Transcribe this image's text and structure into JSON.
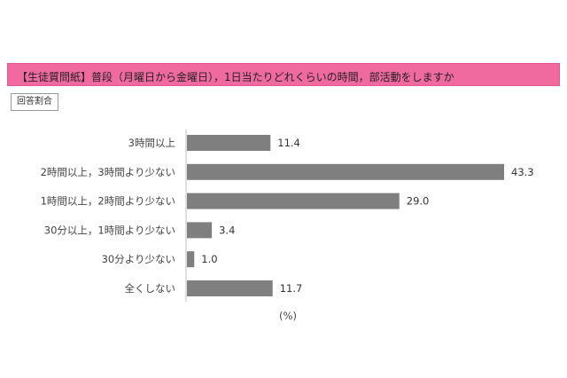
{
  "header": {
    "title": "【生徒質問紙】普段（月曜日から金曜日），1日当たりどれくらいの時間，部活動をしますか",
    "answer_label": "回答割合"
  },
  "colors": {
    "title_bg": "#f06aa0",
    "bar": "#7f7f7f",
    "axis": "#bfbfbf"
  },
  "chart_data": {
    "type": "bar",
    "orientation": "horizontal",
    "categories": [
      "3時間以上",
      "2時間以上，3時間より少ない",
      "1時間以上，2時間より少ない",
      "30分以上，1時間より少ない",
      "30分より少ない",
      "全くしない"
    ],
    "values": [
      11.4,
      43.3,
      29.0,
      3.4,
      1.0,
      11.7
    ],
    "value_labels": [
      "11.4",
      "43.3",
      "29.0",
      "3.4",
      "1.0",
      "11.7"
    ],
    "xlim": [
      0,
      45
    ],
    "unit_label": "(%)",
    "grid": false
  }
}
